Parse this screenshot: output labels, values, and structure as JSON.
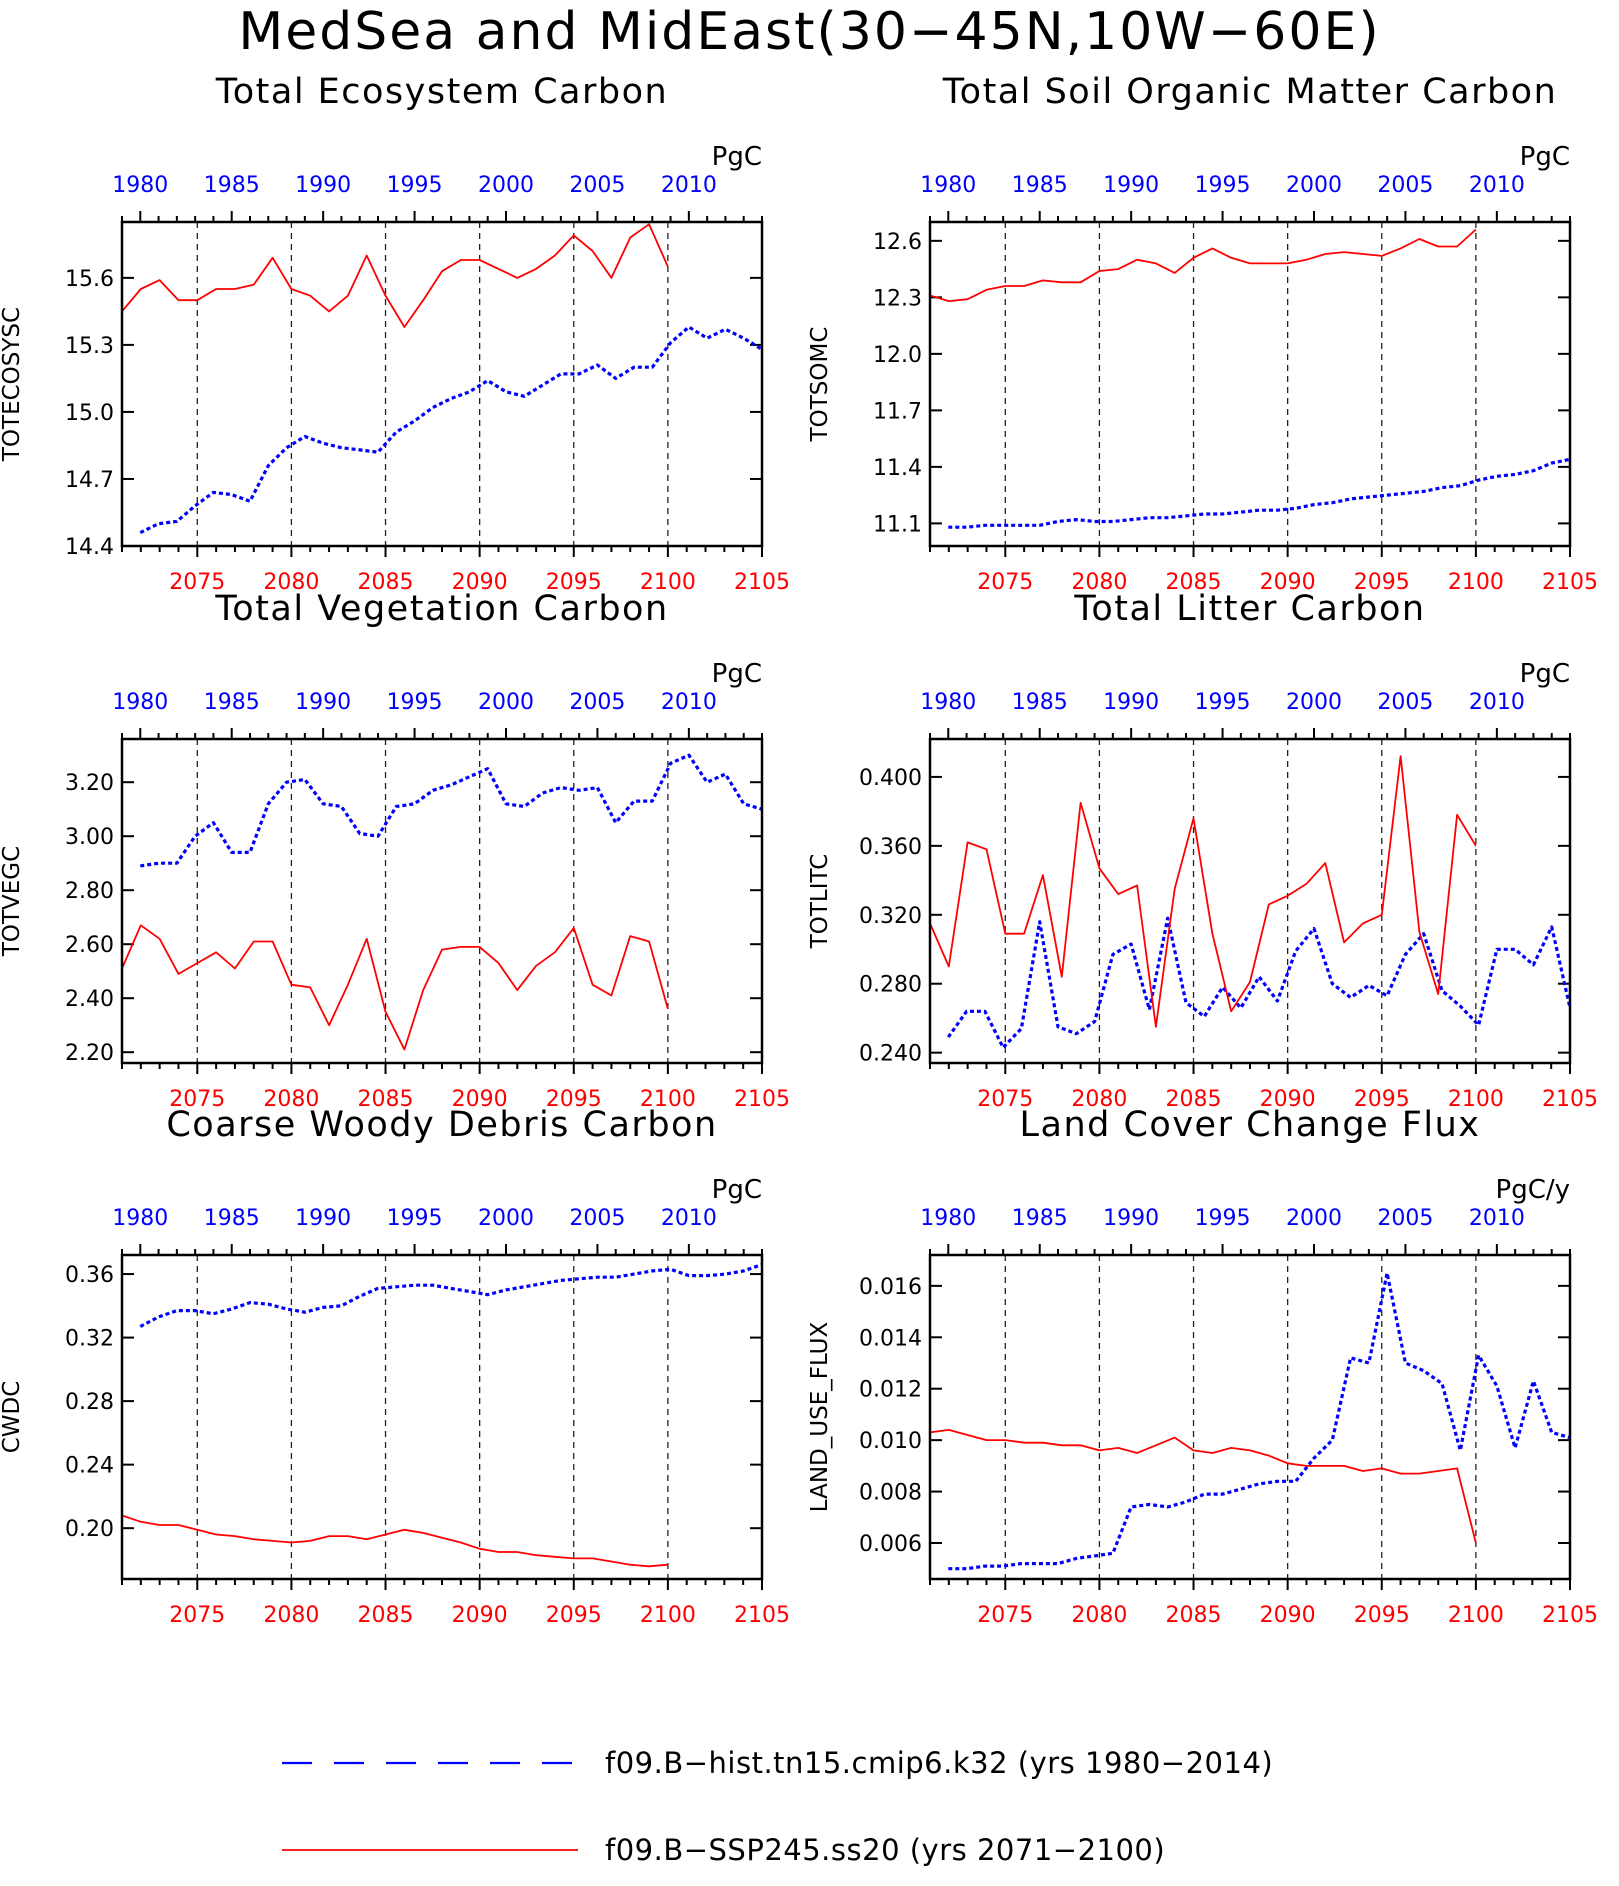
{
  "title": "MedSea and MidEast(30−45N,10W−60E)",
  "legend": [
    {
      "label": "f09.B−hist.tn15.cmip6.k32 (yrs 1980−2014)",
      "color": "#0000ff",
      "style": "dashed"
    },
    {
      "label": "f09.B−SSP245.ss20 (yrs 2071−2100)",
      "color": "#ff0000",
      "style": "solid"
    }
  ],
  "colors": {
    "hist": "#0000ff",
    "ssp": "#ff0000",
    "axis": "#000000"
  },
  "chart_data": [
    {
      "type": "line",
      "title": "Total Ecosystem Carbon",
      "ylabel": "TOTECOSYSC",
      "units": "PgC",
      "ylim": [
        14.4,
        15.85
      ],
      "yticks": [
        "14.4",
        "14.7",
        "15.0",
        "15.3",
        "15.6"
      ],
      "top_axis": {
        "range": [
          1979,
          2014
        ],
        "ticks": [
          1980,
          1985,
          1990,
          1995,
          2000,
          2005,
          2010
        ]
      },
      "bottom_axis": {
        "range": [
          2071,
          2105
        ],
        "ticks": [
          2075,
          2080,
          2085,
          2090,
          2095,
          2100,
          2105
        ]
      },
      "vlines": [
        2075,
        2080,
        2085,
        2090,
        2095,
        2100
      ],
      "series": [
        {
          "name": "f09.B−hist.tn15.cmip6.k32",
          "x_start": 1980,
          "values": [
            14.46,
            14.5,
            14.51,
            14.58,
            14.64,
            14.63,
            14.6,
            14.76,
            14.84,
            14.89,
            14.86,
            14.84,
            14.83,
            14.82,
            14.91,
            14.96,
            15.02,
            15.06,
            15.09,
            15.14,
            15.09,
            15.07,
            15.12,
            15.17,
            15.17,
            15.21,
            15.15,
            15.2,
            15.2,
            15.31,
            15.38,
            15.33,
            15.37,
            15.33,
            15.28
          ]
        },
        {
          "name": "f09.B−SSP245.ss20",
          "x_start": 2071,
          "values": [
            15.45,
            15.55,
            15.59,
            15.5,
            15.5,
            15.55,
            15.55,
            15.57,
            15.69,
            15.55,
            15.52,
            15.45,
            15.52,
            15.7,
            15.52,
            15.38,
            15.5,
            15.63,
            15.68,
            15.68,
            15.64,
            15.6,
            15.64,
            15.7,
            15.79,
            15.72,
            15.6,
            15.78,
            15.84,
            15.65
          ]
        }
      ]
    },
    {
      "type": "line",
      "title": "Total Soil Organic Matter Carbon",
      "ylabel": "TOTSOMC",
      "units": "PgC",
      "ylim": [
        10.98,
        12.7
      ],
      "yticks": [
        "11.1",
        "11.4",
        "11.7",
        "12.0",
        "12.3",
        "12.6"
      ],
      "top_axis": {
        "range": [
          1979,
          2014
        ],
        "ticks": [
          1980,
          1985,
          1990,
          1995,
          2000,
          2005,
          2010
        ]
      },
      "bottom_axis": {
        "range": [
          2071,
          2105
        ],
        "ticks": [
          2075,
          2080,
          2085,
          2090,
          2095,
          2100,
          2105
        ]
      },
      "vlines": [
        2075,
        2080,
        2085,
        2090,
        2095,
        2100
      ],
      "series": [
        {
          "name": "f09.B−hist.tn15.cmip6.k32",
          "x_start": 1980,
          "values": [
            11.08,
            11.08,
            11.09,
            11.09,
            11.09,
            11.09,
            11.11,
            11.12,
            11.11,
            11.11,
            11.12,
            11.13,
            11.13,
            11.14,
            11.15,
            11.15,
            11.16,
            11.17,
            11.17,
            11.18,
            11.2,
            11.21,
            11.23,
            11.24,
            11.25,
            11.26,
            11.27,
            11.29,
            11.3,
            11.33,
            11.35,
            11.36,
            11.38,
            11.42,
            11.44
          ]
        },
        {
          "name": "f09.B−SSP245.ss20",
          "x_start": 2071,
          "values": [
            12.31,
            12.28,
            12.29,
            12.34,
            12.36,
            12.36,
            12.39,
            12.38,
            12.38,
            12.44,
            12.45,
            12.5,
            12.48,
            12.43,
            12.51,
            12.56,
            12.51,
            12.48,
            12.48,
            12.48,
            12.5,
            12.53,
            12.54,
            12.53,
            12.52,
            12.56,
            12.61,
            12.57,
            12.57,
            12.66
          ]
        }
      ]
    },
    {
      "type": "line",
      "title": "Total Vegetation Carbon",
      "ylabel": "TOTVEGC",
      "units": "PgC",
      "ylim": [
        2.16,
        3.36
      ],
      "yticks": [
        "2.20",
        "2.40",
        "2.60",
        "2.80",
        "3.00",
        "3.20"
      ],
      "top_axis": {
        "range": [
          1979,
          2014
        ],
        "ticks": [
          1980,
          1985,
          1990,
          1995,
          2000,
          2005,
          2010
        ]
      },
      "bottom_axis": {
        "range": [
          2071,
          2105
        ],
        "ticks": [
          2075,
          2080,
          2085,
          2090,
          2095,
          2100,
          2105
        ]
      },
      "vlines": [
        2075,
        2080,
        2085,
        2090,
        2095,
        2100
      ],
      "series": [
        {
          "name": "f09.B−hist.tn15.cmip6.k32",
          "x_start": 1980,
          "values": [
            2.89,
            2.9,
            2.9,
            3.0,
            3.05,
            2.94,
            2.94,
            3.12,
            3.2,
            3.21,
            3.12,
            3.11,
            3.01,
            3.0,
            3.11,
            3.12,
            3.17,
            3.19,
            3.22,
            3.25,
            3.12,
            3.11,
            3.16,
            3.18,
            3.17,
            3.18,
            3.05,
            3.13,
            3.13,
            3.27,
            3.3,
            3.2,
            3.23,
            3.12,
            3.1
          ]
        },
        {
          "name": "f09.B−SSP245.ss20",
          "x_start": 2071,
          "values": [
            2.51,
            2.67,
            2.62,
            2.49,
            2.53,
            2.57,
            2.51,
            2.61,
            2.61,
            2.45,
            2.44,
            2.3,
            2.45,
            2.62,
            2.35,
            2.21,
            2.43,
            2.58,
            2.59,
            2.59,
            2.53,
            2.43,
            2.52,
            2.57,
            2.66,
            2.45,
            2.41,
            2.63,
            2.61,
            2.36
          ]
        }
      ]
    },
    {
      "type": "line",
      "title": "Total Litter Carbon",
      "ylabel": "TOTLITC",
      "units": "PgC",
      "ylim": [
        0.234,
        0.422
      ],
      "yticks": [
        "0.240",
        "0.280",
        "0.320",
        "0.360",
        "0.400"
      ],
      "top_axis": {
        "range": [
          1979,
          2014
        ],
        "ticks": [
          1980,
          1985,
          1990,
          1995,
          2000,
          2005,
          2010
        ]
      },
      "bottom_axis": {
        "range": [
          2071,
          2105
        ],
        "ticks": [
          2075,
          2080,
          2085,
          2090,
          2095,
          2100,
          2105
        ]
      },
      "vlines": [
        2075,
        2080,
        2085,
        2090,
        2095,
        2100
      ],
      "series": [
        {
          "name": "f09.B−hist.tn15.cmip6.k32",
          "x_start": 1980,
          "values": [
            0.249,
            0.264,
            0.264,
            0.243,
            0.254,
            0.316,
            0.255,
            0.251,
            0.258,
            0.297,
            0.303,
            0.265,
            0.318,
            0.269,
            0.261,
            0.278,
            0.266,
            0.284,
            0.27,
            0.299,
            0.312,
            0.28,
            0.272,
            0.279,
            0.273,
            0.297,
            0.309,
            0.276,
            0.267,
            0.256,
            0.3,
            0.3,
            0.291,
            0.313,
            0.266
          ]
        },
        {
          "name": "f09.B−SSP245.ss20",
          "x_start": 2071,
          "values": [
            0.315,
            0.29,
            0.362,
            0.358,
            0.309,
            0.309,
            0.343,
            0.284,
            0.385,
            0.347,
            0.332,
            0.337,
            0.255,
            0.335,
            0.376,
            0.309,
            0.264,
            0.281,
            0.326,
            0.331,
            0.338,
            0.35,
            0.304,
            0.315,
            0.32,
            0.412,
            0.31,
            0.274,
            0.378,
            0.36
          ]
        }
      ]
    },
    {
      "type": "line",
      "title": "Coarse Woody Debris Carbon",
      "ylabel": "CWDC",
      "units": "PgC",
      "ylim": [
        0.168,
        0.372
      ],
      "yticks": [
        "0.20",
        "0.24",
        "0.28",
        "0.32",
        "0.36"
      ],
      "top_axis": {
        "range": [
          1979,
          2014
        ],
        "ticks": [
          1980,
          1985,
          1990,
          1995,
          2000,
          2005,
          2010
        ]
      },
      "bottom_axis": {
        "range": [
          2071,
          2105
        ],
        "ticks": [
          2075,
          2080,
          2085,
          2090,
          2095,
          2100,
          2105
        ]
      },
      "vlines": [
        2075,
        2080,
        2085,
        2090,
        2095,
        2100
      ],
      "series": [
        {
          "name": "f09.B−hist.tn15.cmip6.k32",
          "x_start": 1980,
          "values": [
            0.327,
            0.333,
            0.337,
            0.337,
            0.335,
            0.338,
            0.342,
            0.341,
            0.338,
            0.336,
            0.339,
            0.34,
            0.346,
            0.351,
            0.352,
            0.353,
            0.353,
            0.351,
            0.349,
            0.347,
            0.35,
            0.352,
            0.354,
            0.356,
            0.357,
            0.358,
            0.358,
            0.36,
            0.362,
            0.363,
            0.359,
            0.359,
            0.36,
            0.362,
            0.366
          ]
        },
        {
          "name": "f09.B−SSP245.ss20",
          "x_start": 2071,
          "values": [
            0.208,
            0.204,
            0.202,
            0.202,
            0.199,
            0.196,
            0.195,
            0.193,
            0.192,
            0.191,
            0.192,
            0.195,
            0.195,
            0.193,
            0.196,
            0.199,
            0.197,
            0.194,
            0.191,
            0.187,
            0.185,
            0.185,
            0.183,
            0.182,
            0.181,
            0.181,
            0.179,
            0.177,
            0.176,
            0.177
          ]
        }
      ]
    },
    {
      "type": "line",
      "title": "Land Cover Change Flux",
      "ylabel": "LAND_USE_FLUX",
      "units": "PgC/y",
      "ylim": [
        0.0046,
        0.0172
      ],
      "yticks": [
        "0.006",
        "0.008",
        "0.010",
        "0.012",
        "0.014",
        "0.016"
      ],
      "top_axis": {
        "range": [
          1979,
          2014
        ],
        "ticks": [
          1980,
          1985,
          1990,
          1995,
          2000,
          2005,
          2010
        ]
      },
      "bottom_axis": {
        "range": [
          2071,
          2105
        ],
        "ticks": [
          2075,
          2080,
          2085,
          2090,
          2095,
          2100,
          2105
        ]
      },
      "vlines": [
        2075,
        2080,
        2085,
        2090,
        2095,
        2100
      ],
      "series": [
        {
          "name": "f09.B−hist.tn15.cmip6.k32",
          "x_start": 1980,
          "values": [
            0.005,
            0.005,
            0.0051,
            0.0051,
            0.0052,
            0.0052,
            0.0052,
            0.0054,
            0.0055,
            0.0056,
            0.0074,
            0.0075,
            0.0074,
            0.0076,
            0.0079,
            0.0079,
            0.0081,
            0.0083,
            0.0084,
            0.0084,
            0.0093,
            0.01,
            0.0132,
            0.013,
            0.0165,
            0.013,
            0.0127,
            0.0122,
            0.0096,
            0.0133,
            0.0121,
            0.0097,
            0.0123,
            0.0103,
            0.0101
          ]
        },
        {
          "name": "f09.B−SSP245.ss20",
          "x_start": 2071,
          "values": [
            0.0103,
            0.0104,
            0.0102,
            0.01,
            0.01,
            0.0099,
            0.0099,
            0.0098,
            0.0098,
            0.0096,
            0.0097,
            0.0095,
            0.0098,
            0.0101,
            0.0096,
            0.0095,
            0.0097,
            0.0096,
            0.0094,
            0.0091,
            0.009,
            0.009,
            0.009,
            0.0088,
            0.0089,
            0.0087,
            0.0087,
            0.0088,
            0.0089,
            0.006
          ]
        }
      ]
    }
  ]
}
